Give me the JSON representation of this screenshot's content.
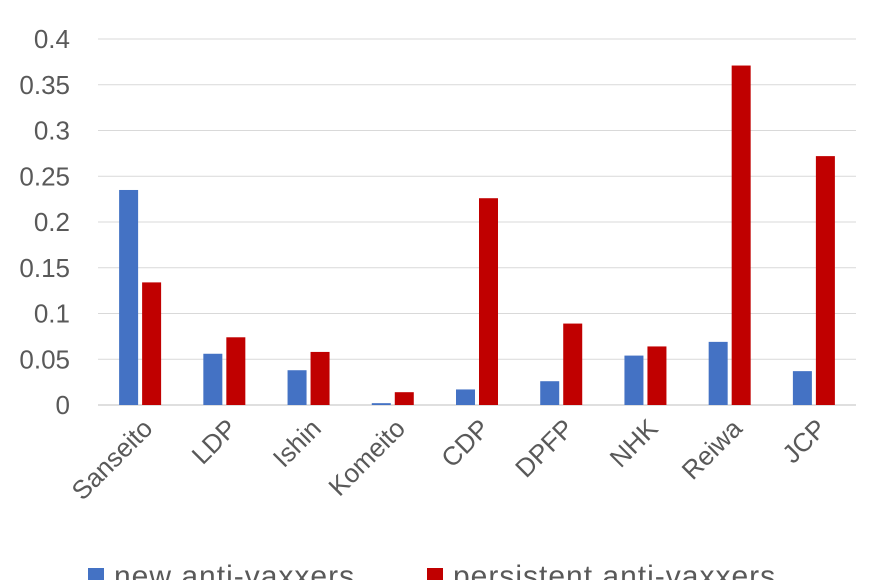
{
  "chart_data": {
    "type": "bar",
    "title": "",
    "xlabel": "",
    "ylabel": "",
    "categories": [
      "Sanseito",
      "LDP",
      "Ishin",
      "Komeito",
      "CDP",
      "DPFP",
      "NHK",
      "Reiwa",
      "JCP"
    ],
    "series": [
      {
        "name": "new anti-vaxxers",
        "color": "#4472C4",
        "values": [
          0.235,
          0.056,
          0.038,
          0.002,
          0.017,
          0.026,
          0.054,
          0.069,
          0.037
        ]
      },
      {
        "name": "persistent anti-vaxxers",
        "color": "#C00000",
        "values": [
          0.134,
          0.074,
          0.058,
          0.014,
          0.226,
          0.089,
          0.064,
          0.371,
          0.272
        ]
      }
    ],
    "ylim": [
      0,
      0.4
    ],
    "yticks": [
      "0",
      "0.05",
      "0.1",
      "0.15",
      "0.2",
      "0.25",
      "0.3",
      "0.35",
      "0.4"
    ],
    "grid": true,
    "legend_position": "bottom"
  }
}
